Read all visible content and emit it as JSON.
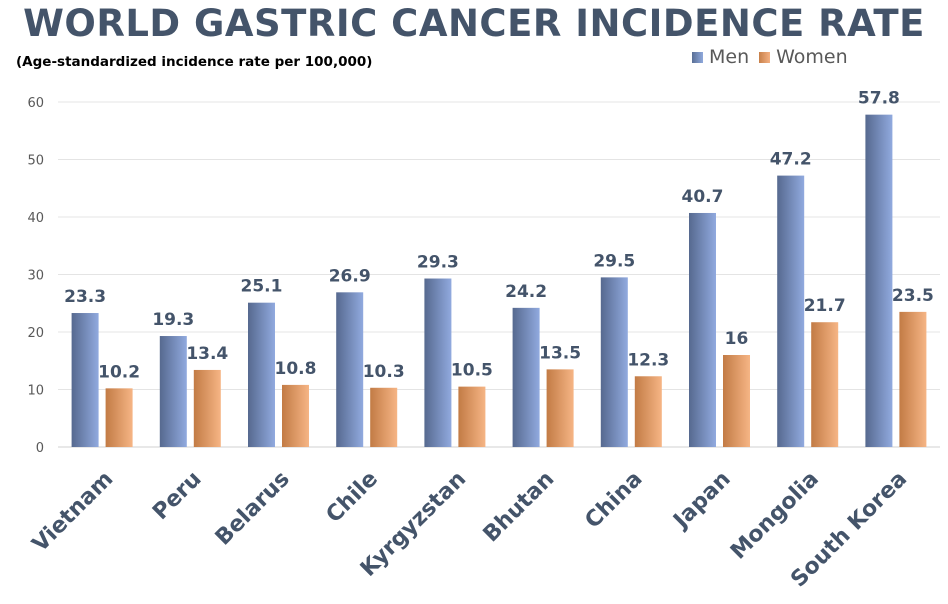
{
  "chart_data": {
    "type": "bar",
    "title": "WORLD GASTRIC CANCER INCIDENCE RATE",
    "subtitle": "(Age-standardized incidence rate per 100,000)",
    "categories": [
      "Vietnam",
      "Peru",
      "Belarus",
      "Chile",
      "Kyrgyzstan",
      "Bhutan",
      "China",
      "Japan",
      "Mongolia",
      "South Korea"
    ],
    "series": [
      {
        "name": "Men",
        "values": [
          23.3,
          19.3,
          25.1,
          26.9,
          29.3,
          24.2,
          29.5,
          40.7,
          47.2,
          57.8
        ],
        "labels": [
          "23.3",
          "19.3",
          "25.1",
          "26.9",
          "29.3",
          "24.2",
          "29.5",
          "40.7",
          "47.2",
          "57.8"
        ],
        "color": "#8fa9dc"
      },
      {
        "name": "Women",
        "values": [
          10.2,
          13.4,
          10.8,
          10.3,
          10.5,
          13.5,
          12.3,
          16,
          21.7,
          23.5
        ],
        "labels": [
          "10.2",
          "13.4",
          "10.8",
          "10.3",
          "10.5",
          "13.5",
          "12.3",
          "16",
          "21.7",
          "23.5"
        ],
        "color": "#f4b183"
      }
    ],
    "yticks": [
      "0",
      "10",
      "20",
      "30",
      "40",
      "50",
      "60"
    ],
    "ylim": [
      0,
      60
    ],
    "grid": true,
    "legend": "top-right"
  }
}
